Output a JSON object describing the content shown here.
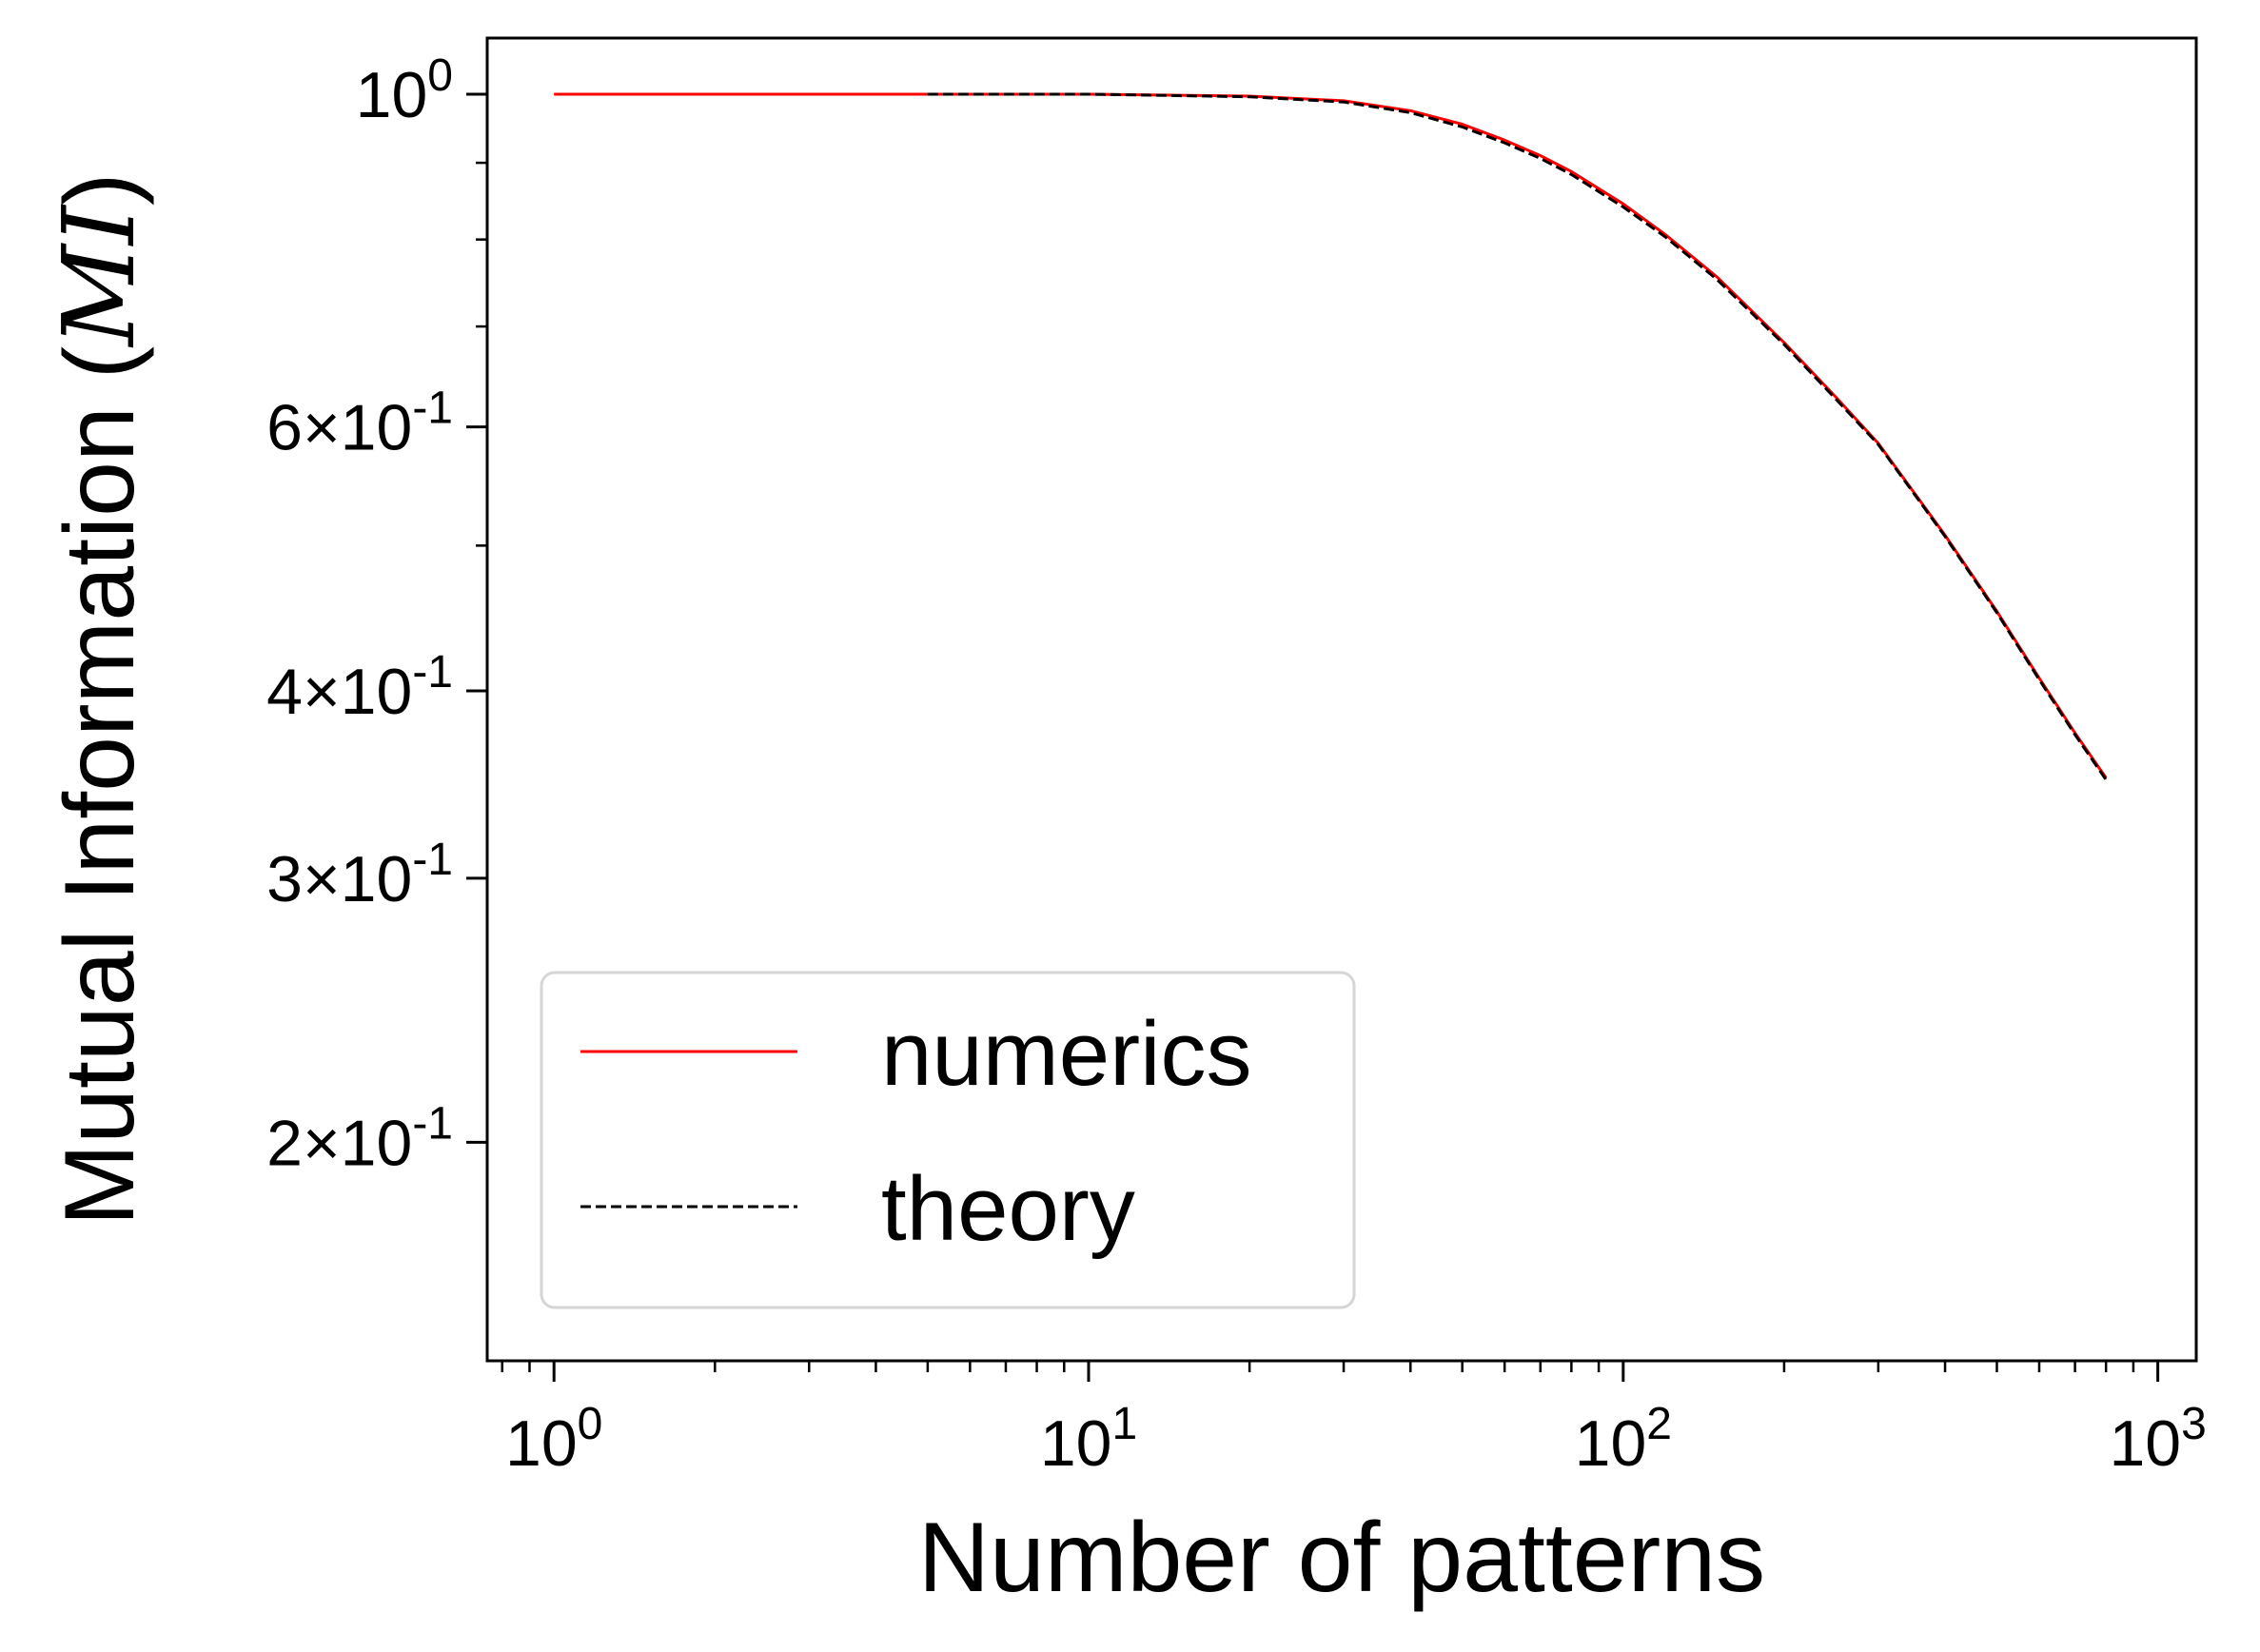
{
  "chart_data": {
    "type": "line",
    "xscale": "log",
    "yscale": "log",
    "xlabel": "Number of patterns",
    "ylabel": "Mutual Information (",
    "ylabel_math": "MI",
    "ylabel_close": ")",
    "xlim": [
      0.75,
      1180
    ],
    "ylim": [
      0.143,
      1.09
    ],
    "x_ticks": [
      {
        "value": 1,
        "base": "10",
        "exp": "0"
      },
      {
        "value": 10,
        "base": "10",
        "exp": "1"
      },
      {
        "value": 100,
        "base": "10",
        "exp": "2"
      },
      {
        "value": 1000,
        "base": "10",
        "exp": "3"
      }
    ],
    "y_ticks": [
      {
        "value": 1.0,
        "mant": "",
        "base": "10",
        "exp": "0"
      },
      {
        "value": 0.6,
        "mant": "6×",
        "base": "10",
        "exp": "-1"
      },
      {
        "value": 0.4,
        "mant": "4×",
        "base": "10",
        "exp": "-1"
      },
      {
        "value": 0.3,
        "mant": "3×",
        "base": "10",
        "exp": "-1"
      },
      {
        "value": 0.2,
        "mant": "2×",
        "base": "10",
        "exp": "-1"
      }
    ],
    "y_minor_ticks": [
      0.9,
      0.8,
      0.7,
      0.5
    ],
    "grid": false,
    "legend_position": "lower-left",
    "series": [
      {
        "name": "numerics",
        "color": "#ff0000",
        "style": "solid",
        "x": [
          1,
          2,
          5,
          10,
          20,
          30,
          40,
          50,
          60,
          70,
          80,
          100,
          120,
          150,
          200,
          250,
          300,
          400,
          500,
          600,
          700,
          800
        ],
        "y": [
          1.0,
          1.0,
          1.0,
          1.0,
          0.997,
          0.99,
          0.975,
          0.955,
          0.932,
          0.91,
          0.888,
          0.845,
          0.806,
          0.755,
          0.683,
          0.628,
          0.585,
          0.508,
          0.452,
          0.408,
          0.375,
          0.35
        ]
      },
      {
        "name": "theory",
        "color": "#000000",
        "style": "dashed",
        "x": [
          5,
          10,
          20,
          30,
          40,
          50,
          60,
          70,
          80,
          100,
          120,
          150,
          200,
          250,
          300,
          400,
          500,
          600,
          700,
          800
        ],
        "y": [
          1.0,
          1.0,
          0.996,
          0.988,
          0.972,
          0.951,
          0.928,
          0.906,
          0.884,
          0.841,
          0.803,
          0.752,
          0.681,
          0.626,
          0.584,
          0.507,
          0.451,
          0.407,
          0.374,
          0.349
        ]
      }
    ]
  }
}
